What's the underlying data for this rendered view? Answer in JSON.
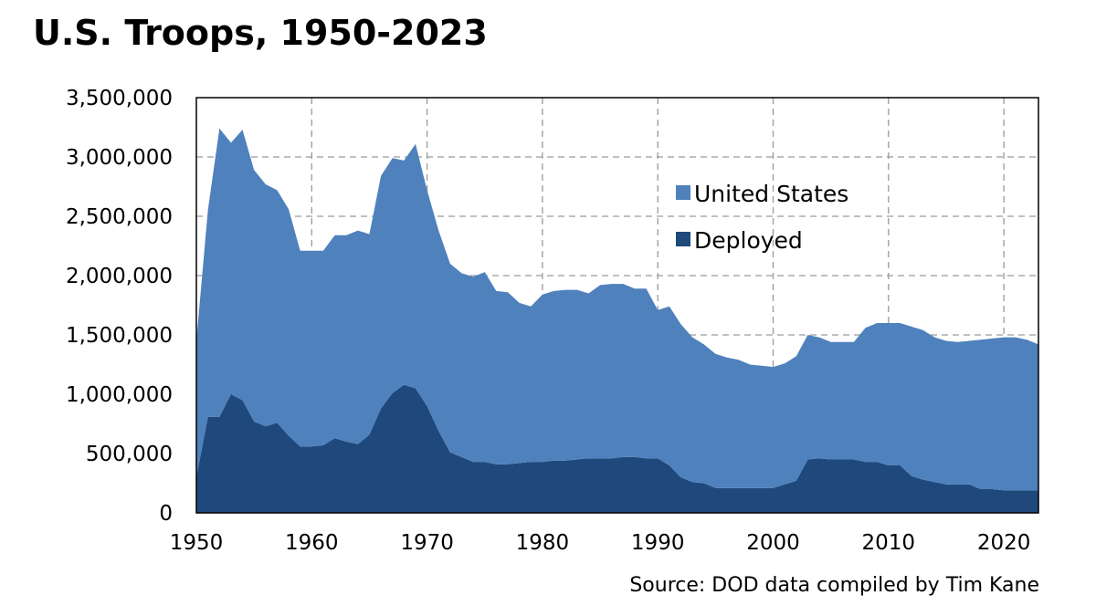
{
  "chart_data": {
    "type": "area",
    "stacked": true,
    "title": "U.S. Troops, 1950-2023",
    "source": "Source: DOD data compiled by Tim Kane",
    "xlabel": "",
    "ylabel": "",
    "xlim": [
      1950,
      2023
    ],
    "ylim": [
      0,
      3500000
    ],
    "grid": true,
    "legend_position": "top-right",
    "x_ticks": [
      1950,
      1960,
      1970,
      1980,
      1990,
      2000,
      2010,
      2020
    ],
    "x_tick_labels": [
      "1950",
      "1960",
      "1970",
      "1980",
      "1990",
      "2000",
      "2010",
      "2020"
    ],
    "y_ticks": [
      0,
      500000,
      1000000,
      1500000,
      2000000,
      2500000,
      3000000,
      3500000
    ],
    "y_tick_labels": [
      "0",
      "500,000",
      "1,000,000",
      "1,500,000",
      "2,000,000",
      "2,500,000",
      "3,000,000",
      "3,500,000"
    ],
    "x": [
      1950,
      1951,
      1952,
      1953,
      1954,
      1955,
      1956,
      1957,
      1958,
      1959,
      1960,
      1961,
      1962,
      1963,
      1964,
      1965,
      1966,
      1967,
      1968,
      1969,
      1970,
      1971,
      1972,
      1973,
      1974,
      1975,
      1976,
      1977,
      1978,
      1979,
      1980,
      1981,
      1982,
      1983,
      1984,
      1985,
      1986,
      1987,
      1988,
      1989,
      1990,
      1991,
      1992,
      1993,
      1994,
      1995,
      1996,
      1997,
      1998,
      1999,
      2000,
      2001,
      2002,
      2003,
      2004,
      2005,
      2006,
      2007,
      2008,
      2009,
      2010,
      2011,
      2012,
      2013,
      2014,
      2015,
      2016,
      2017,
      2018,
      2019,
      2020,
      2021,
      2022,
      2023
    ],
    "series": [
      {
        "name": "Deployed",
        "color": "#1f497d",
        "values": [
          300000,
          810000,
          810000,
          1000000,
          950000,
          770000,
          730000,
          760000,
          650000,
          560000,
          560000,
          570000,
          630000,
          600000,
          580000,
          660000,
          880000,
          1010000,
          1080000,
          1050000,
          900000,
          690000,
          510000,
          470000,
          430000,
          430000,
          410000,
          410000,
          420000,
          430000,
          430000,
          440000,
          440000,
          450000,
          460000,
          460000,
          460000,
          470000,
          470000,
          460000,
          460000,
          400000,
          300000,
          260000,
          250000,
          210000,
          210000,
          210000,
          210000,
          210000,
          210000,
          240000,
          270000,
          450000,
          460000,
          450000,
          450000,
          450000,
          430000,
          430000,
          400000,
          400000,
          310000,
          280000,
          260000,
          240000,
          240000,
          240000,
          200000,
          200000,
          190000,
          190000,
          190000,
          190000
        ]
      },
      {
        "name": "United States",
        "color": "#4f81bd",
        "values": [
          1150000,
          1740000,
          2430000,
          2120000,
          2280000,
          2120000,
          2040000,
          1960000,
          1910000,
          1650000,
          1650000,
          1640000,
          1710000,
          1740000,
          1800000,
          1690000,
          1960000,
          1980000,
          1890000,
          2060000,
          1820000,
          1690000,
          1590000,
          1550000,
          1560000,
          1600000,
          1460000,
          1450000,
          1350000,
          1310000,
          1410000,
          1430000,
          1440000,
          1430000,
          1390000,
          1460000,
          1470000,
          1460000,
          1420000,
          1430000,
          1250000,
          1340000,
          1290000,
          1220000,
          1170000,
          1130000,
          1100000,
          1080000,
          1040000,
          1030000,
          1020000,
          1020000,
          1050000,
          1050000,
          1020000,
          990000,
          990000,
          990000,
          1130000,
          1170000,
          1200000,
          1200000,
          1260000,
          1260000,
          1220000,
          1210000,
          1200000,
          1210000,
          1260000,
          1270000,
          1290000,
          1290000,
          1270000,
          1230000
        ]
      }
    ],
    "legend": [
      {
        "label": "United States",
        "color": "#4f81bd"
      },
      {
        "label": "Deployed",
        "color": "#1f497d"
      }
    ]
  }
}
